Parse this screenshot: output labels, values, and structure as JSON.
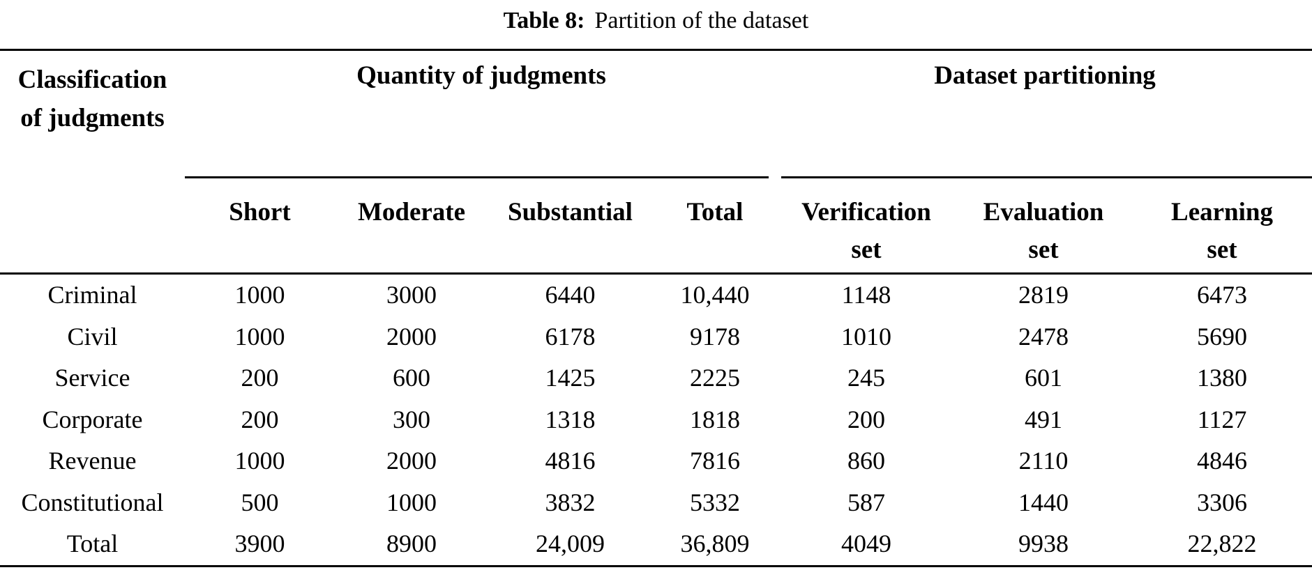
{
  "title": {
    "label": "Table 8:",
    "caption": "Partition of the dataset"
  },
  "table": {
    "corner_header": "Classification of judgments",
    "groups": [
      {
        "label": "Quantity of judgments",
        "columns": [
          "Short",
          "Moderate",
          "Substantial",
          "Total"
        ]
      },
      {
        "label": "Dataset partitioning",
        "columns": [
          "Verification set",
          "Evaluation set",
          "Learning set"
        ]
      }
    ],
    "rows": [
      {
        "label": "Criminal",
        "cells": [
          "1000",
          "3000",
          "6440",
          "10,440",
          "1148",
          "2819",
          "6473"
        ]
      },
      {
        "label": "Civil",
        "cells": [
          "1000",
          "2000",
          "6178",
          "9178",
          "1010",
          "2478",
          "5690"
        ]
      },
      {
        "label": "Service",
        "cells": [
          "200",
          "600",
          "1425",
          "2225",
          "245",
          "601",
          "1380"
        ]
      },
      {
        "label": "Corporate",
        "cells": [
          "200",
          "300",
          "1318",
          "1818",
          "200",
          "491",
          "1127"
        ]
      },
      {
        "label": "Revenue",
        "cells": [
          "1000",
          "2000",
          "4816",
          "7816",
          "860",
          "2110",
          "4846"
        ]
      },
      {
        "label": "Constitutional",
        "cells": [
          "500",
          "1000",
          "3832",
          "5332",
          "587",
          "1440",
          "3306"
        ]
      },
      {
        "label": "Total",
        "cells": [
          "3900",
          "8900",
          "24,009",
          "36,809",
          "4049",
          "9938",
          "22,822"
        ]
      }
    ]
  },
  "colors": {
    "text": "#000000",
    "background": "#ffffff",
    "rule": "#000000"
  }
}
